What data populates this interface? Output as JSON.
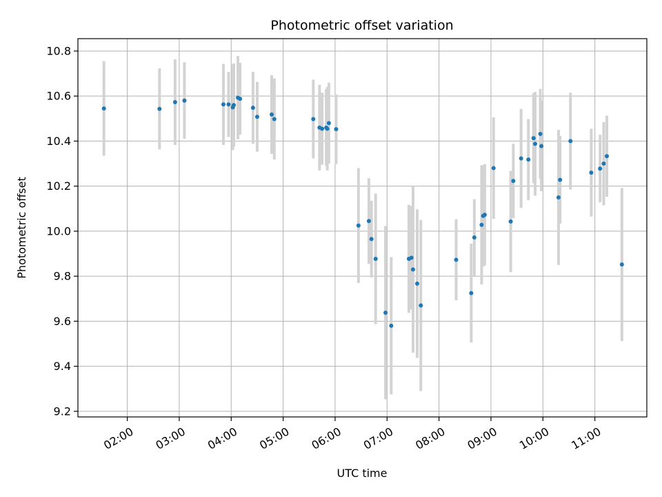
{
  "chart_data": {
    "type": "scatter",
    "title": "Photometric offset variation",
    "xlabel": "UTC time",
    "ylabel": "Photometric offset",
    "x_tick_labels": [
      "02:00",
      "03:00",
      "04:00",
      "05:00",
      "06:00",
      "07:00",
      "08:00",
      "09:00",
      "10:00",
      "11:00"
    ],
    "x_tick_hours": [
      2,
      3,
      4,
      5,
      6,
      7,
      8,
      9,
      10,
      11
    ],
    "y_tick_labels": [
      "9.2",
      "9.4",
      "9.6",
      "9.8",
      "10.0",
      "10.2",
      "10.4",
      "10.6",
      "10.8"
    ],
    "y_tick_values": [
      9.2,
      9.4,
      9.6,
      9.8,
      10.0,
      10.2,
      10.4,
      10.6,
      10.8
    ],
    "xlim_hours": [
      1.05,
      12.0
    ],
    "ylim": [
      9.175,
      10.855
    ],
    "grid": true,
    "colors": {
      "point": "#1f77b4",
      "errorbar": "#d3d3d3",
      "grid": "#b0b0b0"
    },
    "x_hours": [
      1.55,
      2.62,
      2.92,
      3.1,
      3.85,
      3.95,
      4.03,
      4.05,
      4.13,
      4.17,
      4.42,
      4.5,
      4.78,
      4.83,
      5.58,
      5.7,
      5.75,
      5.83,
      5.85,
      5.88,
      6.02,
      6.45,
      6.65,
      6.7,
      6.78,
      6.97,
      7.08,
      7.42,
      7.47,
      7.5,
      7.58,
      7.65,
      8.33,
      8.62,
      8.68,
      8.82,
      8.85,
      8.88,
      9.05,
      9.38,
      9.43,
      9.58,
      9.72,
      9.82,
      9.85,
      9.95,
      9.97,
      10.3,
      10.33,
      10.53,
      10.93,
      11.1,
      11.17,
      11.23,
      11.52
    ],
    "y": [
      10.545,
      10.543,
      10.573,
      10.58,
      10.563,
      10.563,
      10.55,
      10.56,
      10.593,
      10.588,
      10.548,
      10.508,
      10.518,
      10.498,
      10.498,
      10.46,
      10.455,
      10.46,
      10.455,
      10.48,
      10.453,
      10.025,
      10.045,
      9.965,
      9.877,
      9.638,
      9.58,
      9.877,
      9.882,
      9.83,
      9.767,
      9.67,
      9.873,
      9.725,
      9.972,
      10.028,
      10.068,
      10.073,
      10.28,
      10.043,
      10.223,
      10.323,
      10.318,
      10.413,
      10.388,
      10.432,
      10.378,
      10.15,
      10.228,
      10.4,
      10.26,
      10.278,
      10.3,
      10.333,
      9.852
    ],
    "yerr": [
      0.21,
      0.18,
      0.19,
      0.17,
      0.18,
      0.145,
      0.19,
      0.185,
      0.185,
      0.16,
      0.16,
      0.155,
      0.175,
      0.18,
      0.175,
      0.19,
      0.16,
      0.17,
      0.185,
      0.18,
      0.155,
      0.255,
      0.19,
      0.17,
      0.29,
      0.385,
      0.305,
      0.24,
      0.23,
      0.37,
      0.33,
      0.38,
      0.18,
      0.22,
      0.17,
      0.265,
      0.225,
      0.225,
      0.225,
      0.225,
      0.165,
      0.22,
      0.18,
      0.2,
      0.23,
      0.2,
      0.2,
      0.3,
      0.195,
      0.215,
      0.195,
      0.15,
      0.185,
      0.18,
      0.34
    ]
  }
}
